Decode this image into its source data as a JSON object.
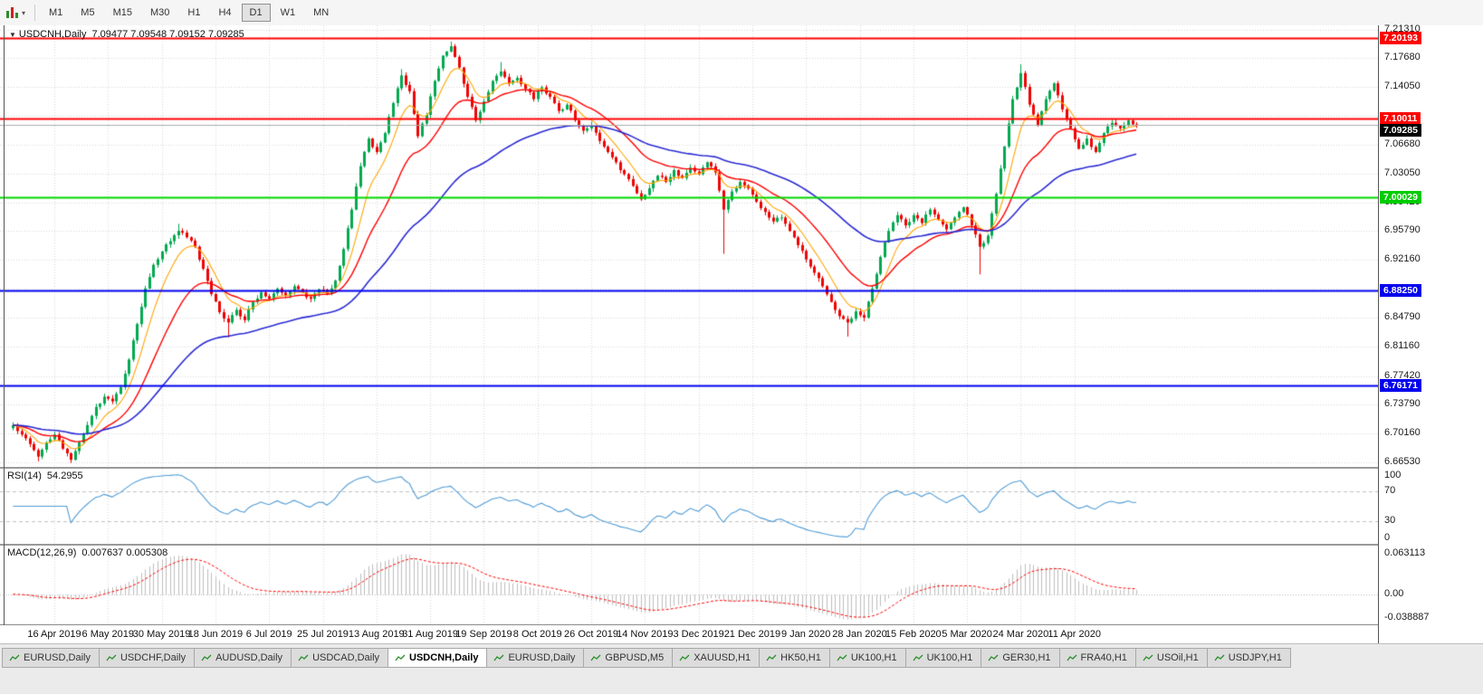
{
  "toolbar": {
    "timeframes": [
      "M1",
      "M5",
      "M15",
      "M30",
      "H1",
      "H4",
      "D1",
      "W1",
      "MN"
    ],
    "selected_timeframe": "D1"
  },
  "chart": {
    "header": {
      "collapse_icon": "▼",
      "symbol": "USDCNH,Daily",
      "ohlc": "7.09477 7.09548 7.09152 7.09285"
    }
  },
  "rsi_panel": {
    "label": "RSI(14)",
    "value": "54.2955",
    "scale_labels": [
      "100",
      "70",
      "30",
      "0"
    ]
  },
  "macd_panel": {
    "label": "MACD(12,26,9)",
    "value": "0.007637 0.005308",
    "scale_labels": [
      "0.063113",
      "0.00",
      "-0.038887"
    ]
  },
  "time_axis": {
    "labels": [
      "16 Apr 2019",
      "6 May 2019",
      "30 May 2019",
      "18 Jun 2019",
      "6 Jul 2019",
      "25 Jul 2019",
      "13 Aug 2019",
      "31 Aug 2019",
      "19 Sep 2019",
      "8 Oct 2019",
      "26 Oct 2019",
      "14 Nov 2019",
      "3 Dec 2019",
      "21 Dec 2019",
      "9 Jan 2020",
      "28 Jan 2020",
      "15 Feb 2020",
      "5 Mar 2020",
      "24 Mar 2020",
      "11 Apr 2020"
    ]
  },
  "price_axis": {
    "labels": [
      "7.21310",
      "7.17680",
      "7.14050",
      "7.06680",
      "7.03050",
      "6.99420",
      "6.95790",
      "6.92160",
      "6.84790",
      "6.81160",
      "6.77420",
      "6.73790",
      "6.70160",
      "6.66530"
    ],
    "badges": [
      {
        "text": "7.20193",
        "price": 7.20193,
        "bg": "#FF0000",
        "fg": "#FFFFFF",
        "name": "resistance-level-badge-upper"
      },
      {
        "text": "7.10011",
        "price": 7.10011,
        "bg": "#FF0000",
        "fg": "#FFFFFF",
        "name": "resistance-level-badge-lower"
      },
      {
        "text": "7.09285",
        "price": 7.09285,
        "bg": "#000000",
        "fg": "#FFFFFF",
        "name": "current-price-badge"
      },
      {
        "text": "7.00029",
        "price": 7.00029,
        "bg": "#00CC00",
        "fg": "#FFFFFF",
        "name": "support-level-badge-green"
      },
      {
        "text": "6.88250",
        "price": 6.8825,
        "bg": "#0000EE",
        "fg": "#FFFFFF",
        "name": "support-level-badge-blue-upper"
      },
      {
        "text": "6.76171",
        "price": 6.76171,
        "bg": "#0000EE",
        "fg": "#FFFFFF",
        "name": "support-level-badge-blue-lower"
      }
    ]
  },
  "tabs": {
    "active_index": 4,
    "items": [
      {
        "label": "EURUSD,Daily"
      },
      {
        "label": "USDCHF,Daily"
      },
      {
        "label": "AUDUSD,Daily"
      },
      {
        "label": "USDCAD,Daily"
      },
      {
        "label": "USDCNH,Daily"
      },
      {
        "label": "EURUSD,Daily"
      },
      {
        "label": "GBPUSD,M5"
      },
      {
        "label": "XAUUSD,H1"
      },
      {
        "label": "HK50,H1"
      },
      {
        "label": "UK100,H1"
      },
      {
        "label": "UK100,H1"
      },
      {
        "label": "GER30,H1"
      },
      {
        "label": "FRA40,H1"
      },
      {
        "label": "USOil,H1"
      },
      {
        "label": "USDJPY,H1"
      }
    ]
  },
  "chart_data": {
    "type": "candlestick",
    "title": "USDCNH,Daily",
    "open": 7.09477,
    "high": 7.09548,
    "low": 7.09152,
    "close": 7.09285,
    "y_range": {
      "min": 6.659,
      "max": 7.2185
    },
    "y_gridline_values": [
      7.2131,
      7.1768,
      7.1405,
      7.1042,
      7.0668,
      7.0305,
      6.9942,
      6.9579,
      6.9216,
      6.8853,
      6.8479,
      6.8116,
      6.7742,
      6.7379,
      6.7016,
      6.6653
    ],
    "x_labels": [
      "16 Apr 2019",
      "6 May 2019",
      "30 May 2019",
      "18 Jun 2019",
      "6 Jul 2019",
      "25 Jul 2019",
      "13 Aug 2019",
      "31 Aug 2019",
      "19 Sep 2019",
      "8 Oct 2019",
      "26 Oct 2019",
      "14 Nov 2019",
      "3 Dec 2019",
      "21 Dec 2019",
      "9 Jan 2020",
      "28 Jan 2020",
      "15 Feb 2020",
      "5 Mar 2020",
      "24 Mar 2020",
      "11 Apr 2020"
    ],
    "closes": [
      6.712,
      6.7,
      6.688,
      6.672,
      6.69,
      6.7,
      6.682,
      6.668,
      6.69,
      6.712,
      6.735,
      6.748,
      6.742,
      6.76,
      6.795,
      6.84,
      6.885,
      6.915,
      6.932,
      6.945,
      6.958,
      6.95,
      6.938,
      6.91,
      6.878,
      6.855,
      6.842,
      6.858,
      6.845,
      6.868,
      6.88,
      6.872,
      6.885,
      6.876,
      6.888,
      6.88,
      6.872,
      6.884,
      6.878,
      6.895,
      6.935,
      6.985,
      7.04,
      7.075,
      7.058,
      7.082,
      7.12,
      7.155,
      7.135,
      7.078,
      7.105,
      7.148,
      7.18,
      7.192,
      7.165,
      7.128,
      7.098,
      7.122,
      7.148,
      7.16,
      7.145,
      7.152,
      7.138,
      7.125,
      7.14,
      7.128,
      7.11,
      7.118,
      7.098,
      7.085,
      7.092,
      7.072,
      7.058,
      7.045,
      7.03,
      7.015,
      6.998,
      7.012,
      7.028,
      7.02,
      7.035,
      7.025,
      7.038,
      7.03,
      7.045,
      7.032,
      6.985,
      7.008,
      7.02,
      7.012,
      6.995,
      6.982,
      6.97,
      6.975,
      6.958,
      6.94,
      6.922,
      6.905,
      6.888,
      6.868,
      6.85,
      6.842,
      6.856,
      6.848,
      6.885,
      6.925,
      6.958,
      6.978,
      6.965,
      6.978,
      6.968,
      6.985,
      6.972,
      6.96,
      6.975,
      6.988,
      6.965,
      6.938,
      6.952,
      7.005,
      7.065,
      7.125,
      7.158,
      7.118,
      7.092,
      7.125,
      7.145,
      7.112,
      7.088,
      7.062,
      7.075,
      7.058,
      7.082,
      7.095,
      7.088,
      7.098,
      7.093
    ],
    "spikes": {
      "3": {
        "low": 6.666
      },
      "7": {
        "low": 6.664
      },
      "20": {
        "high": 6.967
      },
      "26": {
        "low": 6.823
      },
      "47": {
        "high": 7.163
      },
      "53": {
        "high": 7.198
      },
      "59": {
        "high": 7.172
      },
      "86": {
        "low": 6.929
      },
      "101": {
        "low": 6.824
      },
      "117": {
        "low": 6.903
      },
      "122": {
        "high": 7.169
      }
    },
    "levels": [
      {
        "price": 7.20193,
        "color": "#FF0000",
        "width": 2
      },
      {
        "price": 7.10011,
        "color": "#FF0000",
        "width": 2
      },
      {
        "price": 7.00029,
        "color": "#00D800",
        "width": 2
      },
      {
        "price": 6.8825,
        "color": "#0000EE",
        "width": 2
      },
      {
        "price": 6.76171,
        "color": "#0000EE",
        "width": 2
      }
    ],
    "current_price": {
      "price": 7.09285,
      "color": "#aaaaaa"
    },
    "candles": {
      "up_color": "#00A84F",
      "down_color": "#EE0000"
    },
    "moving_averages": [
      {
        "period": 8,
        "color": "#FFA500",
        "width": 1.1
      },
      {
        "period": 21,
        "color": "#FF0000",
        "width": 1.4
      },
      {
        "period": 55,
        "color": "#2A2AD4",
        "width": 1.6
      }
    ],
    "rsi": {
      "period": 14,
      "color": "#4F9BD5",
      "levels": [
        70,
        30
      ],
      "current": 54.2955
    },
    "macd": {
      "fast": 12,
      "slow": 26,
      "signal": 9,
      "histogram_color": "#BDBDBD",
      "signal_color": "#FF0000",
      "range_max": 0.063113,
      "range_min": -0.038887,
      "current_macd": 0.007637,
      "current_signal": 0.005308
    }
  }
}
